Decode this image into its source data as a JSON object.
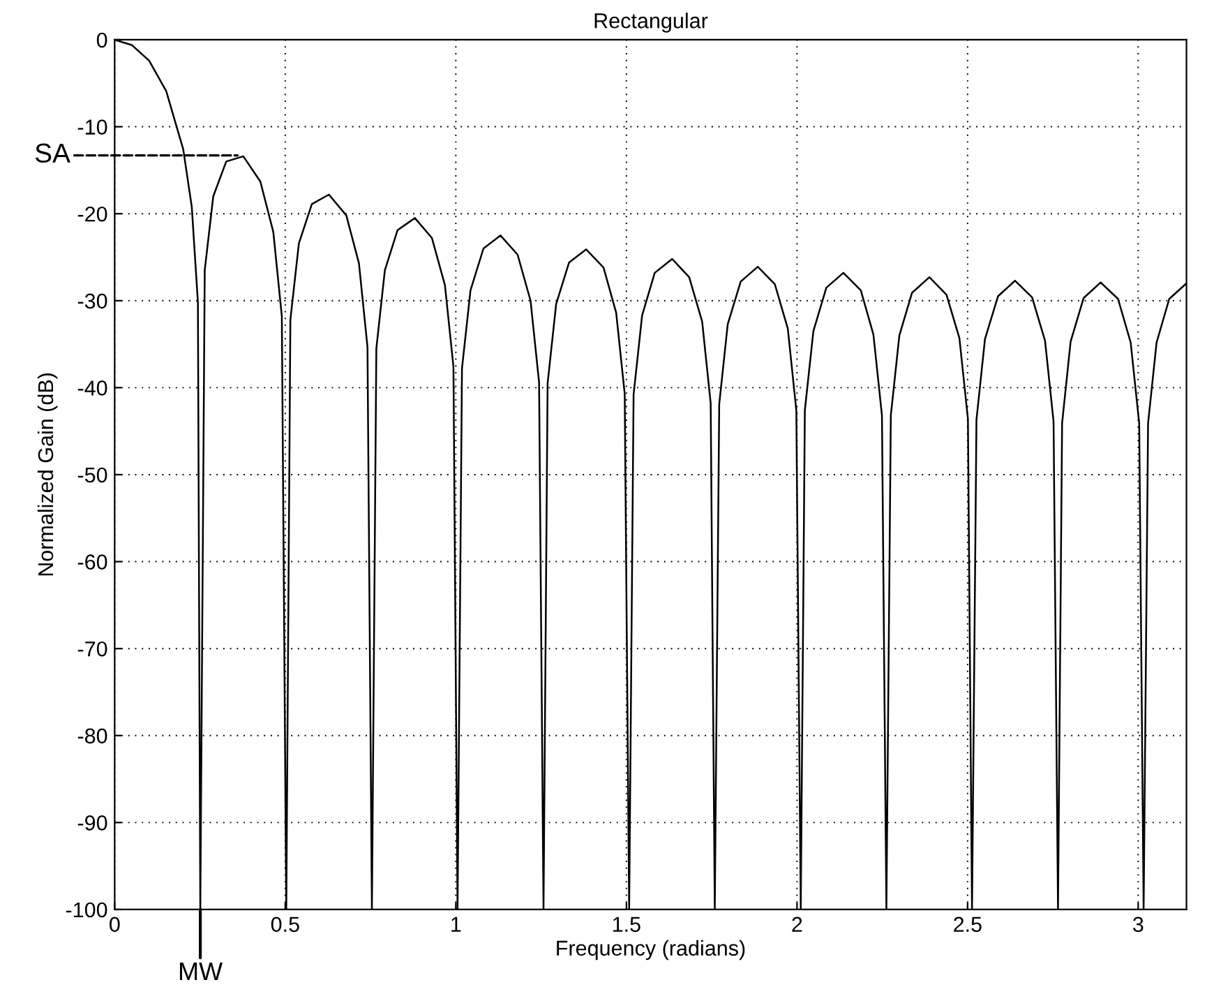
{
  "chart_data": {
    "type": "line",
    "title": "Rectangular",
    "xlabel": "Frequency (radians)",
    "ylabel": "Normalized Gain (dB)",
    "xlim": [
      0,
      3.1416
    ],
    "ylim": [
      -100,
      0
    ],
    "xticks": [
      0,
      0.5,
      1,
      1.5,
      2,
      2.5,
      3
    ],
    "yticks": [
      -100,
      -90,
      -80,
      -70,
      -60,
      -50,
      -40,
      -30,
      -20,
      -10,
      0
    ],
    "grid": true,
    "line_style": "solid",
    "annotations": [
      {
        "text": "SA",
        "x": 0.36,
        "y": -13.3
      },
      {
        "text": "MW",
        "x": 0.251,
        "y": -100
      }
    ],
    "series": [
      {
        "color": "#000000",
        "x": [
          0,
          0.05,
          0.101,
          0.151,
          0.201,
          0.226,
          0.244,
          0.251,
          0.264,
          0.289,
          0.327,
          0.377,
          0.427,
          0.465,
          0.49,
          0.503,
          0.515,
          0.54,
          0.578,
          0.628,
          0.679,
          0.716,
          0.741,
          0.754,
          0.767,
          0.792,
          0.829,
          0.88,
          0.93,
          0.968,
          0.993,
          1.005,
          1.018,
          1.043,
          1.081,
          1.131,
          1.181,
          1.219,
          1.244,
          1.257,
          1.269,
          1.294,
          1.332,
          1.382,
          1.433,
          1.47,
          1.495,
          1.508,
          1.521,
          1.546,
          1.583,
          1.634,
          1.684,
          1.722,
          1.747,
          1.759,
          1.772,
          1.797,
          1.835,
          1.885,
          1.935,
          1.973,
          1.998,
          2.011,
          2.023,
          2.048,
          2.086,
          2.136,
          2.187,
          2.224,
          2.249,
          2.262,
          2.275,
          2.3,
          2.337,
          2.388,
          2.438,
          2.476,
          2.501,
          2.513,
          2.526,
          2.551,
          2.589,
          2.639,
          2.689,
          2.727,
          2.752,
          2.765,
          2.777,
          2.802,
          2.84,
          2.89,
          2.941,
          2.978,
          3.003,
          3.016,
          3.029,
          3.054,
          3.091,
          3.1416
        ],
        "values": [
          0,
          -0.6,
          -2.4,
          -5.9,
          -12.6,
          -19.2,
          -30.2,
          -100,
          -26.5,
          -18.0,
          -14.0,
          -13.4,
          -16.3,
          -22.1,
          -31.8,
          -100,
          -32.2,
          -23.4,
          -18.9,
          -17.8,
          -20.2,
          -25.7,
          -35.3,
          -100,
          -35.5,
          -26.5,
          -21.9,
          -20.5,
          -22.8,
          -28.2,
          -37.6,
          -100,
          -37.8,
          -28.8,
          -24.0,
          -22.5,
          -24.7,
          -30.0,
          -39.4,
          -100,
          -39.5,
          -30.4,
          -25.6,
          -24.1,
          -26.2,
          -31.4,
          -40.7,
          -100,
          -40.8,
          -31.7,
          -26.8,
          -25.2,
          -27.3,
          -32.4,
          -41.8,
          -100,
          -41.9,
          -32.7,
          -27.8,
          -26.1,
          -28.1,
          -33.2,
          -42.6,
          -100,
          -42.6,
          -33.5,
          -28.5,
          -26.8,
          -28.8,
          -33.9,
          -43.2,
          -100,
          -43.2,
          -34.0,
          -29.1,
          -27.3,
          -29.3,
          -34.3,
          -43.6,
          -100,
          -43.7,
          -34.4,
          -29.5,
          -27.7,
          -29.6,
          -34.6,
          -43.9,
          -100,
          -44.1,
          -34.7,
          -29.7,
          -27.9,
          -29.8,
          -34.8,
          -44.1,
          -100,
          -44.1,
          -34.8,
          -29.8,
          -28.0
        ]
      }
    ]
  }
}
